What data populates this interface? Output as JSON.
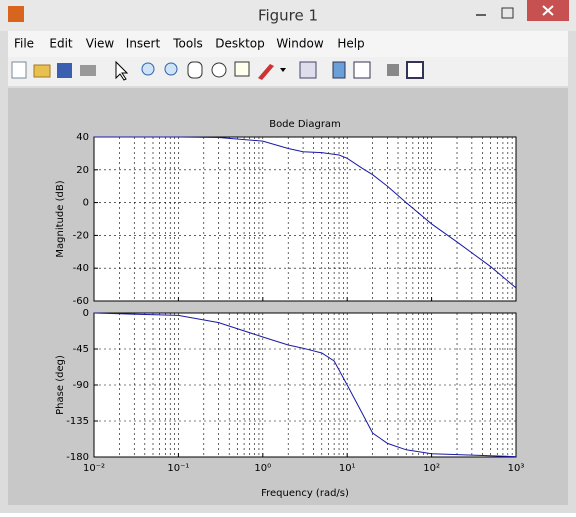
{
  "window": {
    "title": "Figure 1",
    "menu": [
      "File",
      "Edit",
      "View",
      "Insert",
      "Tools",
      "Desktop",
      "Window",
      "Help"
    ]
  },
  "chart_data": [
    {
      "type": "line",
      "title": "Bode Diagram",
      "y_label": "Magnitude (dB)",
      "xscale": "log",
      "grid": true,
      "x": [
        0.01,
        0.1,
        0.3,
        1,
        2,
        3,
        5,
        8,
        10,
        15,
        20,
        30,
        50,
        100,
        200,
        500,
        1000
      ],
      "series": [
        {
          "color": "#1a1aa6",
          "values": [
            40,
            40,
            39.7,
            37.5,
            33,
            31,
            30.5,
            29,
            27,
            21,
            17,
            10,
            0,
            -13,
            -24,
            -39,
            -52
          ]
        }
      ],
      "xlim": [
        0.01,
        1000
      ],
      "xticks": [
        0.01,
        0.1,
        1,
        10,
        100,
        1000
      ],
      "ylim": [
        -60,
        40
      ],
      "yticks": [
        40,
        20,
        0,
        -20,
        -40,
        -60
      ]
    },
    {
      "type": "line",
      "y_label": "Phase (deg)",
      "x_label": "Frequency  (rad/s)",
      "xscale": "log",
      "grid": true,
      "x": [
        0.01,
        0.1,
        0.3,
        1,
        2,
        3,
        5,
        7,
        10,
        15,
        20,
        30,
        50,
        100,
        1000
      ],
      "series": [
        {
          "color": "#1a1aa6",
          "values": [
            0,
            -3,
            -12,
            -30,
            -40,
            -44,
            -50,
            -60,
            -90,
            -125,
            -150,
            -163,
            -171,
            -176,
            -179.5
          ]
        }
      ],
      "xlim": [
        0.01,
        1000
      ],
      "xticks": [
        {
          "value": 0.01,
          "label": "10⁻²"
        },
        {
          "value": 0.1,
          "label": "10⁻¹"
        },
        {
          "value": 1,
          "label": "10⁰"
        },
        {
          "value": 10,
          "label": "10¹"
        },
        {
          "value": 100,
          "label": "10²"
        },
        {
          "value": 1000,
          "label": "10³"
        }
      ],
      "ylim": [
        -180,
        0
      ],
      "yticks": [
        0,
        -45,
        -90,
        -135,
        -180
      ]
    }
  ]
}
